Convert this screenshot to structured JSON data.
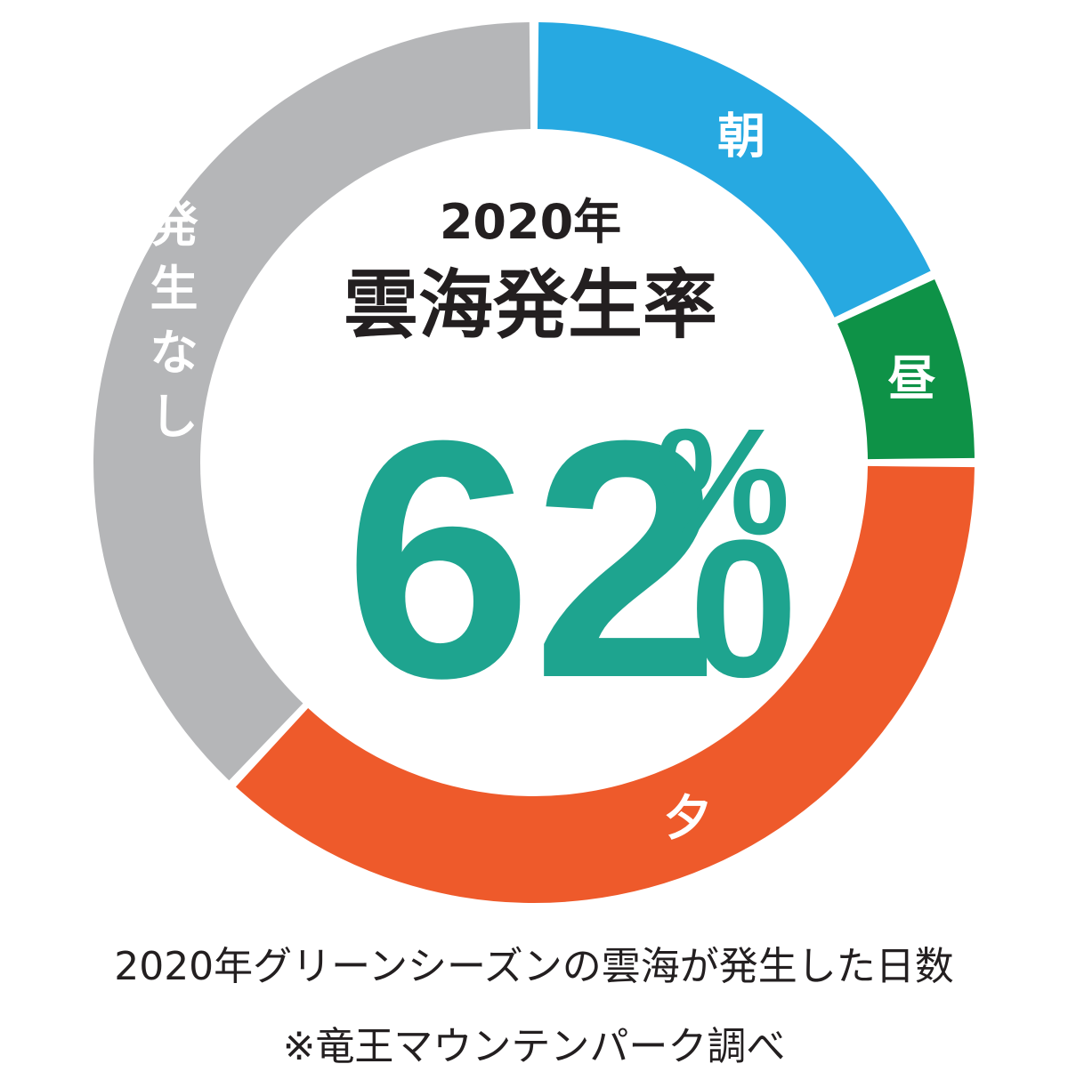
{
  "chart_data": {
    "type": "pie",
    "donut": true,
    "title": "雲海発生率",
    "year_label": "2020年",
    "center_value": {
      "integer": "62",
      "percent_sign": "%",
      "decimal": ".0"
    },
    "slices": [
      {
        "label": "朝",
        "value": 18.0,
        "color": "#27a9e1"
      },
      {
        "label": "昼",
        "value": 7.0,
        "color": "#0e9247"
      },
      {
        "label": "夕",
        "value": 37.0,
        "color": "#ee5a2b"
      },
      {
        "label": "発生なし",
        "value": 38.0,
        "color": "#b5b6b8"
      }
    ],
    "center_color": "#1ea48f"
  },
  "captions": {
    "line1": "2020年グリーンシーズンの雲海が発生した日数",
    "line2": "※竜王マウンテンパーク調べ"
  }
}
